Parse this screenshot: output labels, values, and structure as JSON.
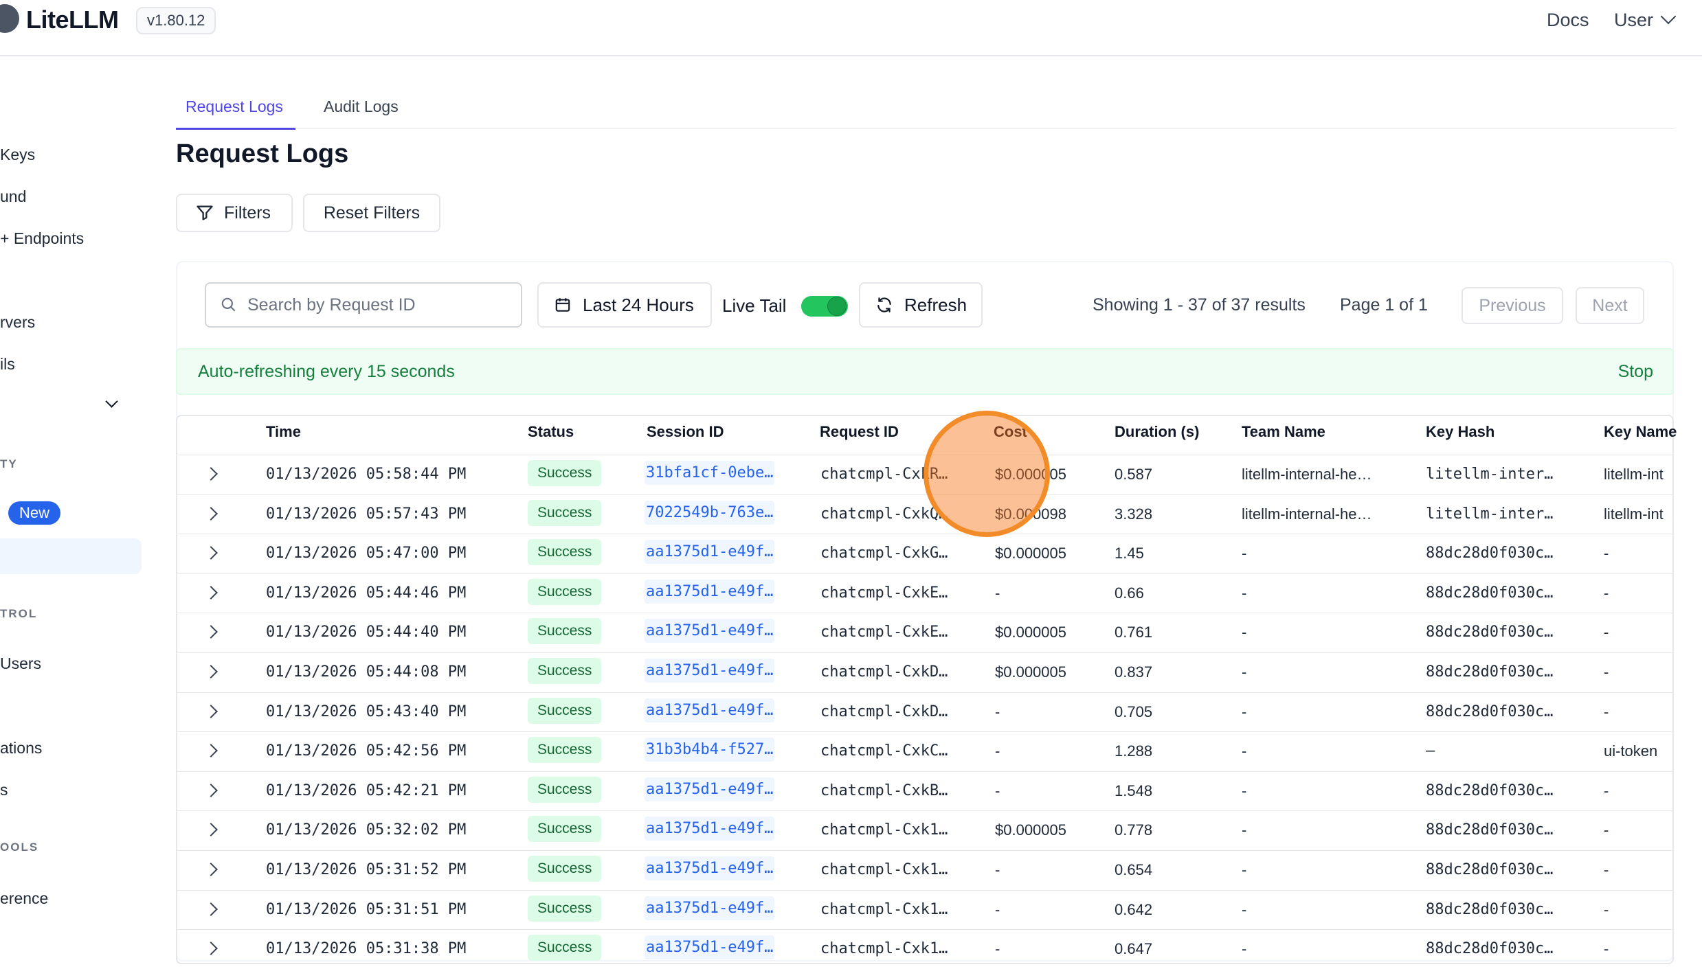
{
  "app": {
    "name": "LiteLLM",
    "version": "v1.80.12"
  },
  "topnav": {
    "docs": "Docs",
    "user": "User"
  },
  "sidebar": {
    "items": [
      "Keys",
      "und",
      "+ Endpoints",
      "rvers",
      "ils",
      "Users",
      "ations",
      "s",
      "erence"
    ],
    "sections": [
      "TY",
      "TROL",
      "OOLS"
    ],
    "new_badge": "New"
  },
  "tabs": [
    "Request Logs",
    "Audit Logs"
  ],
  "page_title": "Request Logs",
  "filters": {
    "filters_label": "Filters",
    "reset_label": "Reset Filters"
  },
  "controls": {
    "search_placeholder": "Search by Request ID",
    "time_range": "Last 24 Hours",
    "live_tail": "Live Tail",
    "live_tail_on": true,
    "refresh": "Refresh",
    "showing": "Showing 1 - 37 of 37 results",
    "page": "Page 1 of 1",
    "previous": "Previous",
    "next": "Next"
  },
  "banner": {
    "text": "Auto-refreshing every 15 seconds",
    "stop": "Stop"
  },
  "table": {
    "columns": [
      "Time",
      "Status",
      "Session ID",
      "Request ID",
      "Cost",
      "Duration (s)",
      "Team Name",
      "Key Hash",
      "Key Name"
    ],
    "rows": [
      {
        "time": "01/13/2026 05:58:44 PM",
        "status": "Success",
        "session": "31bfa1cf-0ebe…",
        "request": "chatcmpl-CxkR…",
        "cost": "$0.000005",
        "duration": "0.587",
        "team": "litellm-internal-he…",
        "hash": "litellm-inter…",
        "keyname": "litellm-int"
      },
      {
        "time": "01/13/2026 05:57:43 PM",
        "status": "Success",
        "session": "7022549b-763e…",
        "request": "chatcmpl-CxkQ…",
        "cost": "$0.000098",
        "duration": "3.328",
        "team": "litellm-internal-he…",
        "hash": "litellm-inter…",
        "keyname": "litellm-int"
      },
      {
        "time": "01/13/2026 05:47:00 PM",
        "status": "Success",
        "session": "aa1375d1-e49f…",
        "request": "chatcmpl-CxkG…",
        "cost": "$0.000005",
        "duration": "1.45",
        "team": "-",
        "hash": "88dc28d0f030c…",
        "keyname": "-"
      },
      {
        "time": "01/13/2026 05:44:46 PM",
        "status": "Success",
        "session": "aa1375d1-e49f…",
        "request": "chatcmpl-CxkE…",
        "cost": "-",
        "duration": "0.66",
        "team": "-",
        "hash": "88dc28d0f030c…",
        "keyname": "-"
      },
      {
        "time": "01/13/2026 05:44:40 PM",
        "status": "Success",
        "session": "aa1375d1-e49f…",
        "request": "chatcmpl-CxkE…",
        "cost": "$0.000005",
        "duration": "0.761",
        "team": "-",
        "hash": "88dc28d0f030c…",
        "keyname": "-"
      },
      {
        "time": "01/13/2026 05:44:08 PM",
        "status": "Success",
        "session": "aa1375d1-e49f…",
        "request": "chatcmpl-CxkD…",
        "cost": "$0.000005",
        "duration": "0.837",
        "team": "-",
        "hash": "88dc28d0f030c…",
        "keyname": "-"
      },
      {
        "time": "01/13/2026 05:43:40 PM",
        "status": "Success",
        "session": "aa1375d1-e49f…",
        "request": "chatcmpl-CxkD…",
        "cost": "-",
        "duration": "0.705",
        "team": "-",
        "hash": "88dc28d0f030c…",
        "keyname": "-"
      },
      {
        "time": "01/13/2026 05:42:56 PM",
        "status": "Success",
        "session": "31b3b4b4-f527…",
        "request": "chatcmpl-CxkC…",
        "cost": "-",
        "duration": "1.288",
        "team": "-",
        "hash": "–",
        "keyname": "ui-token"
      },
      {
        "time": "01/13/2026 05:42:21 PM",
        "status": "Success",
        "session": "aa1375d1-e49f…",
        "request": "chatcmpl-CxkB…",
        "cost": "-",
        "duration": "1.548",
        "team": "-",
        "hash": "88dc28d0f030c…",
        "keyname": "-"
      },
      {
        "time": "01/13/2026 05:32:02 PM",
        "status": "Success",
        "session": "aa1375d1-e49f…",
        "request": "chatcmpl-Cxk1…",
        "cost": "$0.000005",
        "duration": "0.778",
        "team": "-",
        "hash": "88dc28d0f030c…",
        "keyname": "-"
      },
      {
        "time": "01/13/2026 05:31:52 PM",
        "status": "Success",
        "session": "aa1375d1-e49f…",
        "request": "chatcmpl-Cxk1…",
        "cost": "-",
        "duration": "0.654",
        "team": "-",
        "hash": "88dc28d0f030c…",
        "keyname": "-"
      },
      {
        "time": "01/13/2026 05:31:51 PM",
        "status": "Success",
        "session": "aa1375d1-e49f…",
        "request": "chatcmpl-Cxk1…",
        "cost": "-",
        "duration": "0.642",
        "team": "-",
        "hash": "88dc28d0f030c…",
        "keyname": "-"
      },
      {
        "time": "01/13/2026 05:31:38 PM",
        "status": "Success",
        "session": "aa1375d1-e49f…",
        "request": "chatcmpl-Cxk1…",
        "cost": "-",
        "duration": "0.647",
        "team": "-",
        "hash": "88dc28d0f030c…",
        "keyname": "-"
      }
    ]
  },
  "colors": {
    "accent": "#4f46e5",
    "success_bg": "#dcfce7",
    "success_text": "#166534",
    "link": "#2563eb",
    "cursor": "#f28c28"
  }
}
